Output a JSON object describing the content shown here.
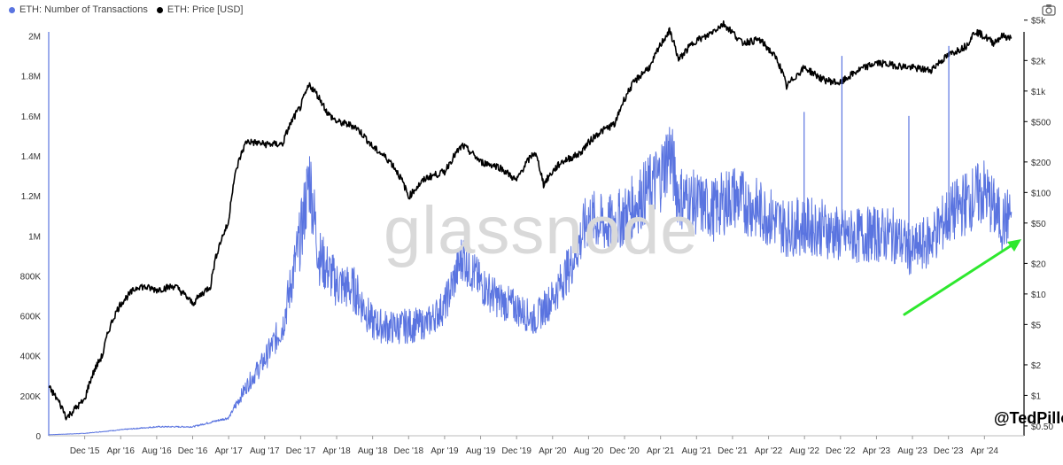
{
  "legend": {
    "items": [
      {
        "label": "ETH: Number of Transactions",
        "color": "#5a74e0"
      },
      {
        "label": "ETH: Price [USD]",
        "color": "#000000"
      }
    ]
  },
  "watermark": "glassnode",
  "handle": "@TedPillows",
  "icons": {
    "camera": "camera-icon"
  },
  "annotation": {
    "type": "arrow",
    "color": "#2ee82e"
  },
  "chart_data": {
    "type": "line",
    "x_ticks": [
      "Dec '15",
      "Apr '16",
      "Aug '16",
      "Dec '16",
      "Apr '17",
      "Aug '17",
      "Dec '17",
      "Apr '18",
      "Aug '18",
      "Dec '18",
      "Apr '19",
      "Aug '19",
      "Dec '19",
      "Apr '20",
      "Aug '20",
      "Dec '20",
      "Apr '21",
      "Aug '21",
      "Dec '21",
      "Apr '22",
      "Aug '22",
      "Dec '22",
      "Apr '23",
      "Aug '23",
      "Dec '23",
      "Apr '24"
    ],
    "y_left": {
      "ticks": [
        "0",
        "200K",
        "400K",
        "600K",
        "800K",
        "1M",
        "1.2M",
        "1.4M",
        "1.6M",
        "1.8M",
        "2M"
      ],
      "range": [
        0,
        2100000
      ]
    },
    "y_right": {
      "ticks": [
        "$0.50",
        "$1",
        "$2",
        "$5",
        "$10",
        "$20",
        "$50",
        "$100",
        "$200",
        "$500",
        "$1k",
        "$2k",
        "$5k"
      ],
      "values": [
        0.5,
        1,
        2,
        5,
        10,
        20,
        50,
        100,
        200,
        500,
        1000,
        2000,
        5000
      ],
      "scale": "log"
    },
    "series": [
      {
        "name": "ETH: Number of Transactions",
        "axis": "left",
        "color": "#5a74e0",
        "points": [
          [
            "2015-08",
            5000
          ],
          [
            "2015-12",
            12000
          ],
          [
            "2016-04",
            30000
          ],
          [
            "2016-08",
            45000
          ],
          [
            "2016-12",
            45000
          ],
          [
            "2017-04",
            90000
          ],
          [
            "2017-06",
            250000
          ],
          [
            "2017-08",
            380000
          ],
          [
            "2017-10",
            550000
          ],
          [
            "2017-12",
            1000000
          ],
          [
            "2018-01",
            1300000
          ],
          [
            "2018-02",
            900000
          ],
          [
            "2018-04",
            760000
          ],
          [
            "2018-06",
            730000
          ],
          [
            "2018-08",
            560000
          ],
          [
            "2018-10",
            540000
          ],
          [
            "2018-12",
            550000
          ],
          [
            "2019-02",
            560000
          ],
          [
            "2019-04",
            650000
          ],
          [
            "2019-06",
            900000
          ],
          [
            "2019-08",
            760000
          ],
          [
            "2019-10",
            680000
          ],
          [
            "2019-12",
            640000
          ],
          [
            "2020-02",
            580000
          ],
          [
            "2020-04",
            690000
          ],
          [
            "2020-06",
            850000
          ],
          [
            "2020-08",
            1090000
          ],
          [
            "2020-10",
            1050000
          ],
          [
            "2020-12",
            1100000
          ],
          [
            "2021-02",
            1200000
          ],
          [
            "2021-04",
            1300000
          ],
          [
            "2021-05",
            1430000
          ],
          [
            "2021-06",
            1200000
          ],
          [
            "2021-08",
            1160000
          ],
          [
            "2021-10",
            1130000
          ],
          [
            "2021-12",
            1200000
          ],
          [
            "2022-02",
            1150000
          ],
          [
            "2022-04",
            1100000
          ],
          [
            "2022-06",
            1040000
          ],
          [
            "2022-08",
            1050000
          ],
          [
            "2022-10",
            1040000
          ],
          [
            "2022-12",
            1000000
          ],
          [
            "2023-02",
            1000000
          ],
          [
            "2023-04",
            1010000
          ],
          [
            "2023-06",
            1000000
          ],
          [
            "2023-08",
            920000
          ],
          [
            "2023-10",
            980000
          ],
          [
            "2023-12",
            1100000
          ],
          [
            "2024-02",
            1170000
          ],
          [
            "2024-04",
            1220000
          ],
          [
            "2024-06",
            1060000
          ],
          [
            "2024-07",
            1120000
          ]
        ]
      },
      {
        "name": "ETH: Price [USD]",
        "axis": "right",
        "color": "#000000",
        "points": [
          [
            "2015-08",
            1.2
          ],
          [
            "2015-10",
            0.6
          ],
          [
            "2015-12",
            0.9
          ],
          [
            "2016-02",
            2.5
          ],
          [
            "2016-04",
            8
          ],
          [
            "2016-06",
            12
          ],
          [
            "2016-08",
            11
          ],
          [
            "2016-10",
            12
          ],
          [
            "2016-12",
            8
          ],
          [
            "2017-02",
            12
          ],
          [
            "2017-04",
            50
          ],
          [
            "2017-06",
            320
          ],
          [
            "2017-08",
            300
          ],
          [
            "2017-10",
            300
          ],
          [
            "2017-12",
            700
          ],
          [
            "2018-01",
            1150
          ],
          [
            "2018-03",
            600
          ],
          [
            "2018-04",
            500
          ],
          [
            "2018-06",
            450
          ],
          [
            "2018-08",
            280
          ],
          [
            "2018-10",
            200
          ],
          [
            "2018-12",
            90
          ],
          [
            "2019-02",
            140
          ],
          [
            "2019-04",
            160
          ],
          [
            "2019-06",
            290
          ],
          [
            "2019-08",
            200
          ],
          [
            "2019-10",
            180
          ],
          [
            "2019-12",
            130
          ],
          [
            "2020-02",
            250
          ],
          [
            "2020-03",
            120
          ],
          [
            "2020-05",
            200
          ],
          [
            "2020-07",
            240
          ],
          [
            "2020-09",
            380
          ],
          [
            "2020-11",
            480
          ],
          [
            "2021-01",
            1200
          ],
          [
            "2021-03",
            1800
          ],
          [
            "2021-05",
            3900
          ],
          [
            "2021-06",
            2000
          ],
          [
            "2021-08",
            3200
          ],
          [
            "2021-09",
            3400
          ],
          [
            "2021-11",
            4600
          ],
          [
            "2022-01",
            3000
          ],
          [
            "2022-03",
            3200
          ],
          [
            "2022-05",
            2000
          ],
          [
            "2022-06",
            1100
          ],
          [
            "2022-08",
            1700
          ],
          [
            "2022-10",
            1300
          ],
          [
            "2022-12",
            1200
          ],
          [
            "2023-02",
            1600
          ],
          [
            "2023-04",
            1900
          ],
          [
            "2023-06",
            1800
          ],
          [
            "2023-08",
            1700
          ],
          [
            "2023-10",
            1600
          ],
          [
            "2023-12",
            2250
          ],
          [
            "2024-02",
            2800
          ],
          [
            "2024-03",
            3900
          ],
          [
            "2024-05",
            3000
          ],
          [
            "2024-06",
            3500
          ],
          [
            "2024-07",
            3300
          ]
        ]
      }
    ]
  }
}
